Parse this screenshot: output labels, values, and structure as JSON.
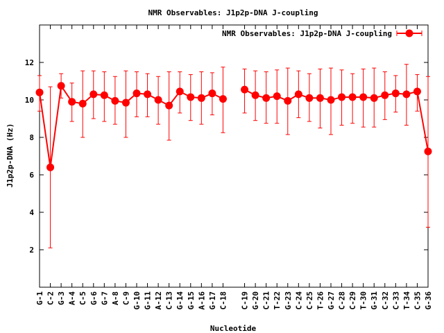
{
  "chart_data": {
    "type": "line",
    "title": "NMR Observables: J1p2p-DNA J-coupling",
    "xlabel": "Nucleotide",
    "ylabel": "J1p2p-DNA (Hz)",
    "ylim": [
      0,
      14
    ],
    "xlim": [
      1,
      37
    ],
    "yticks": [
      2,
      4,
      6,
      8,
      10,
      12
    ],
    "grid": false,
    "legend": {
      "label": "NMR Observables: J1p2p-DNA J-coupling",
      "placement": "top-right"
    },
    "color": "#ff0000",
    "x": [
      1,
      2,
      3,
      4,
      5,
      6,
      7,
      8,
      9,
      10,
      11,
      12,
      13,
      14,
      15,
      16,
      17,
      18,
      20,
      21,
      22,
      23,
      24,
      25,
      26,
      27,
      28,
      29,
      30,
      31,
      32,
      33,
      34,
      35,
      36,
      37
    ],
    "categories": [
      "G-1",
      "C-2",
      "G-3",
      "A-4",
      "C-5",
      "G-6",
      "G-7",
      "A-8",
      "C-9",
      "G-10",
      "G-11",
      "A-12",
      "C-13",
      "G-14",
      "G-15",
      "A-16",
      "G-17",
      "C-18",
      "C-19",
      "G-20",
      "C-21",
      "T-22",
      "G-23",
      "C-24",
      "C-25",
      "T-26",
      "G-27",
      "C-28",
      "C-29",
      "T-30",
      "G-31",
      "C-32",
      "C-33",
      "T-34",
      "C-35",
      "G-36"
    ],
    "values": [
      10.4,
      6.4,
      10.75,
      9.9,
      9.8,
      10.3,
      10.25,
      9.95,
      9.85,
      10.35,
      10.3,
      10.0,
      9.7,
      10.45,
      10.15,
      10.1,
      10.35,
      10.05,
      10.55,
      10.25,
      10.1,
      10.2,
      9.95,
      10.3,
      10.1,
      10.1,
      10.0,
      10.15,
      10.15,
      10.15,
      10.1,
      10.25,
      10.35,
      10.3,
      10.45,
      7.25
    ],
    "err_low": [
      9.4,
      2.1,
      10.1,
      8.85,
      8.0,
      9.0,
      8.85,
      8.7,
      8.0,
      9.1,
      9.1,
      8.7,
      7.85,
      9.3,
      8.9,
      8.7,
      9.2,
      8.25,
      9.3,
      8.9,
      8.75,
      8.75,
      8.15,
      9.05,
      8.85,
      8.5,
      8.15,
      8.65,
      8.75,
      8.55,
      8.55,
      8.95,
      9.35,
      8.65,
      9.4,
      3.2
    ],
    "err_high": [
      11.3,
      10.7,
      11.4,
      10.9,
      11.55,
      11.55,
      11.5,
      11.25,
      11.55,
      11.5,
      11.4,
      11.25,
      11.5,
      11.5,
      11.35,
      11.5,
      11.45,
      11.75,
      11.65,
      11.55,
      11.5,
      11.6,
      11.7,
      11.55,
      11.4,
      11.65,
      11.7,
      11.6,
      11.4,
      11.65,
      11.7,
      11.5,
      11.3,
      11.9,
      11.35,
      11.25
    ]
  }
}
